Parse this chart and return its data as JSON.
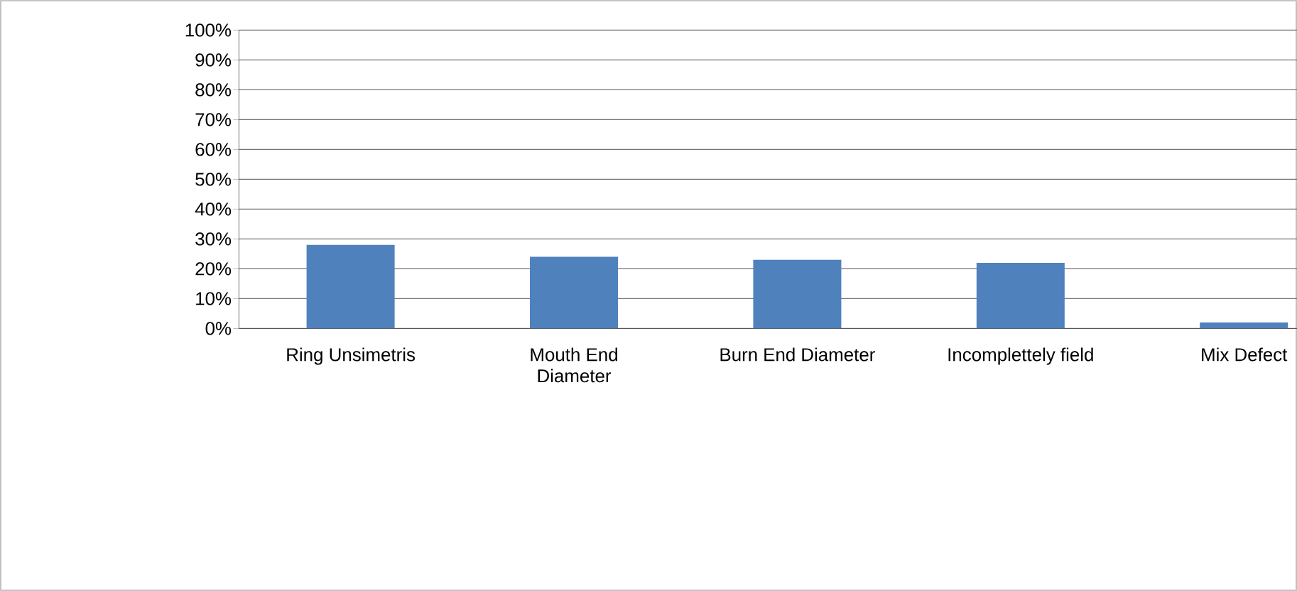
{
  "chart_data": {
    "type": "bar",
    "categories": [
      "Ring Unsimetris",
      "Mouth End Diameter",
      "Burn End Diameter",
      "Incomplettely field",
      "Mix Defect"
    ],
    "values": [
      28,
      24,
      23,
      22,
      2
    ],
    "color": "#4f81bd",
    "ylim": [
      0,
      100
    ],
    "yticks": [
      {
        "value": 0,
        "label": "0%"
      },
      {
        "value": 10,
        "label": "10%"
      },
      {
        "value": 20,
        "label": "20%"
      },
      {
        "value": 30,
        "label": "30%"
      },
      {
        "value": 40,
        "label": "40%"
      },
      {
        "value": 50,
        "label": "50%"
      },
      {
        "value": 60,
        "label": "60%"
      },
      {
        "value": 70,
        "label": "70%"
      },
      {
        "value": 80,
        "label": "80%"
      },
      {
        "value": 90,
        "label": "90%"
      },
      {
        "value": 100,
        "label": "100%"
      }
    ],
    "grid": "y",
    "legend": false
  }
}
